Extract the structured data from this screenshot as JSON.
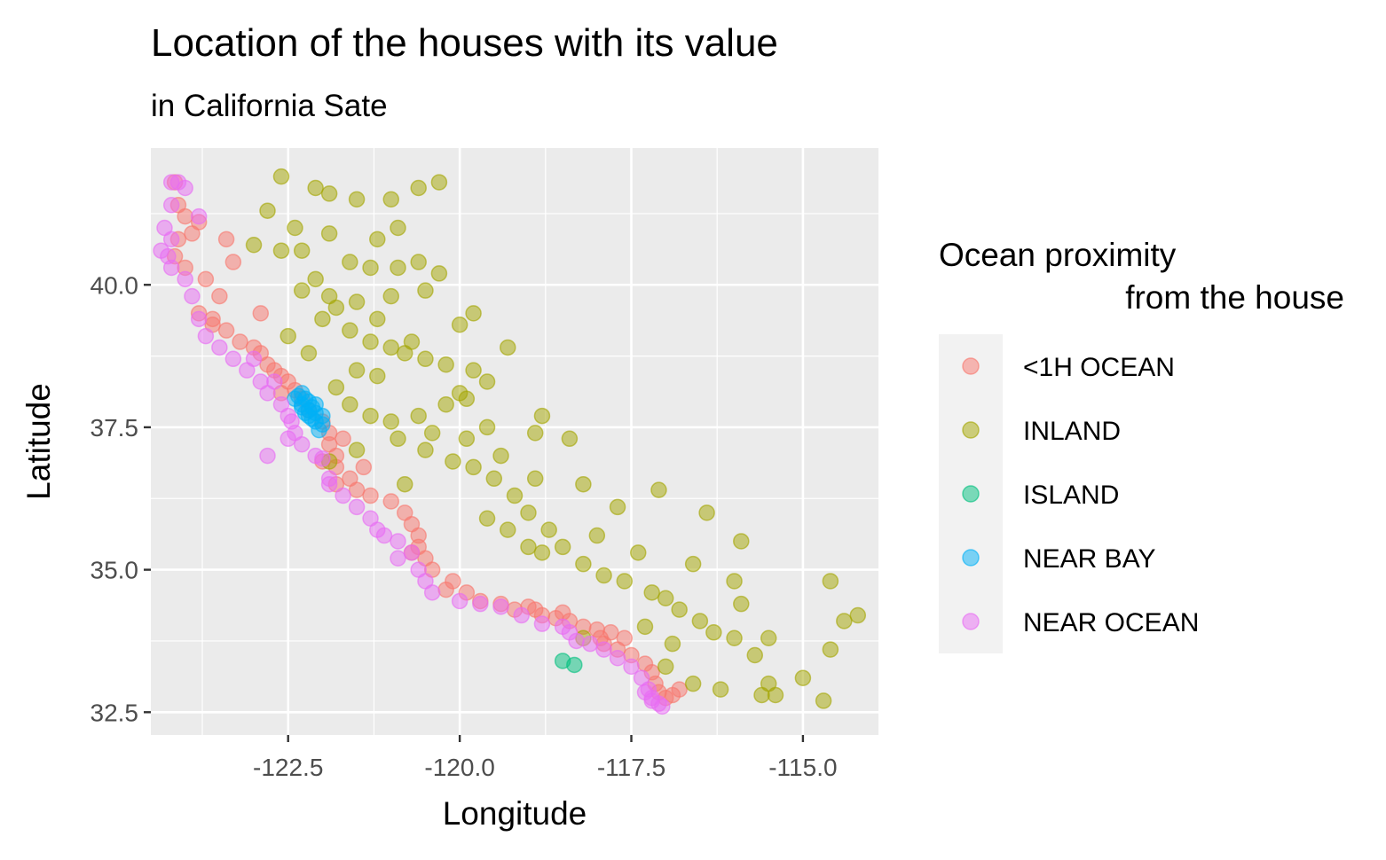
{
  "chart_data": {
    "type": "scatter",
    "title": "Location of the houses with its value",
    "subtitle": "in California Sate",
    "xlabel": "Longitude",
    "ylabel": "Latitude",
    "xlim": [
      -124.5,
      -113.9
    ],
    "ylim": [
      32.1,
      42.4
    ],
    "x_ticks": [
      -122.5,
      -120.0,
      -117.5,
      -115.0
    ],
    "x_tick_labels": [
      "-122.5",
      "-120.0",
      "-117.5",
      "-115.0"
    ],
    "y_ticks": [
      32.5,
      35.0,
      37.5,
      40.0
    ],
    "y_tick_labels": [
      "32.5",
      "35.0",
      "37.5",
      "40.0"
    ],
    "grid": true,
    "legend": {
      "title_lines": [
        "Ocean proximity",
        "from the house"
      ],
      "placement": "right"
    },
    "series": [
      {
        "name": "<1H OCEAN",
        "color": "#F8766D",
        "points": [
          [
            -124.15,
            41.8
          ],
          [
            -124.1,
            41.4
          ],
          [
            -124.0,
            41.2
          ],
          [
            -123.8,
            41.1
          ],
          [
            -123.9,
            40.9
          ],
          [
            -124.1,
            40.8
          ],
          [
            -124.15,
            40.5
          ],
          [
            -124.0,
            40.3
          ],
          [
            -123.7,
            40.1
          ],
          [
            -123.5,
            39.8
          ],
          [
            -123.8,
            39.5
          ],
          [
            -123.6,
            39.3
          ],
          [
            -123.4,
            39.2
          ],
          [
            -123.2,
            39.0
          ],
          [
            -123.0,
            38.9
          ],
          [
            -122.9,
            38.8
          ],
          [
            -122.8,
            38.6
          ],
          [
            -122.7,
            38.5
          ],
          [
            -122.6,
            38.4
          ],
          [
            -122.5,
            38.3
          ],
          [
            -122.4,
            38.15
          ],
          [
            -122.3,
            38.0
          ],
          [
            -122.2,
            37.8
          ],
          [
            -122.0,
            37.6
          ],
          [
            -121.9,
            37.4
          ],
          [
            -121.9,
            37.2
          ],
          [
            -121.8,
            37.0
          ],
          [
            -122.0,
            36.9
          ],
          [
            -121.8,
            36.8
          ],
          [
            -121.6,
            36.6
          ],
          [
            -121.8,
            36.5
          ],
          [
            -121.5,
            36.4
          ],
          [
            -121.3,
            36.3
          ],
          [
            -121.0,
            36.2
          ],
          [
            -120.8,
            36.0
          ],
          [
            -120.7,
            35.8
          ],
          [
            -120.6,
            35.6
          ],
          [
            -120.6,
            35.4
          ],
          [
            -120.5,
            35.2
          ],
          [
            -120.4,
            35.0
          ],
          [
            -120.1,
            34.8
          ],
          [
            -119.9,
            34.6
          ],
          [
            -119.7,
            34.45
          ],
          [
            -119.4,
            34.4
          ],
          [
            -119.0,
            34.35
          ],
          [
            -118.8,
            34.2
          ],
          [
            -118.6,
            34.15
          ],
          [
            -118.4,
            34.1
          ],
          [
            -118.2,
            34.0
          ],
          [
            -118.0,
            33.95
          ],
          [
            -117.8,
            33.9
          ],
          [
            -117.6,
            33.8
          ],
          [
            -117.9,
            33.7
          ],
          [
            -117.7,
            33.6
          ],
          [
            -117.5,
            33.5
          ],
          [
            -117.3,
            33.35
          ],
          [
            -117.2,
            33.2
          ],
          [
            -117.15,
            33.0
          ],
          [
            -117.1,
            32.85
          ],
          [
            -117.0,
            32.75
          ],
          [
            -116.9,
            32.8
          ],
          [
            -116.8,
            32.9
          ],
          [
            -118.9,
            34.3
          ],
          [
            -119.2,
            34.3
          ],
          [
            -120.7,
            35.3
          ],
          [
            -121.4,
            36.8
          ],
          [
            -122.9,
            39.5
          ],
          [
            -123.3,
            40.4
          ],
          [
            -123.4,
            40.8
          ],
          [
            -121.7,
            37.3
          ],
          [
            -118.5,
            34.25
          ],
          [
            -117.95,
            33.8
          ],
          [
            -120.2,
            34.65
          ],
          [
            -122.6,
            38.1
          ],
          [
            -123.6,
            39.4
          ]
        ]
      },
      {
        "name": "INLAND",
        "color": "#A3A500",
        "points": [
          [
            -122.6,
            41.9
          ],
          [
            -122.1,
            41.7
          ],
          [
            -121.9,
            41.6
          ],
          [
            -121.5,
            41.5
          ],
          [
            -121.0,
            41.5
          ],
          [
            -120.6,
            41.7
          ],
          [
            -120.3,
            41.8
          ],
          [
            -122.8,
            41.3
          ],
          [
            -122.4,
            41.0
          ],
          [
            -122.3,
            40.6
          ],
          [
            -121.9,
            40.9
          ],
          [
            -121.6,
            40.4
          ],
          [
            -121.3,
            40.3
          ],
          [
            -120.9,
            40.3
          ],
          [
            -120.6,
            40.4
          ],
          [
            -120.3,
            40.2
          ],
          [
            -120.5,
            39.9
          ],
          [
            -121.0,
            39.8
          ],
          [
            -121.5,
            39.7
          ],
          [
            -121.8,
            39.6
          ],
          [
            -122.0,
            39.4
          ],
          [
            -121.6,
            39.2
          ],
          [
            -121.3,
            39.0
          ],
          [
            -121.0,
            38.9
          ],
          [
            -120.8,
            38.8
          ],
          [
            -120.5,
            38.7
          ],
          [
            -120.2,
            38.6
          ],
          [
            -119.8,
            38.5
          ],
          [
            -119.6,
            38.3
          ],
          [
            -119.9,
            38.0
          ],
          [
            -120.2,
            37.9
          ],
          [
            -120.6,
            37.7
          ],
          [
            -121.0,
            37.6
          ],
          [
            -121.3,
            37.7
          ],
          [
            -121.6,
            37.9
          ],
          [
            -121.8,
            38.2
          ],
          [
            -121.5,
            38.5
          ],
          [
            -121.2,
            38.4
          ],
          [
            -120.9,
            37.3
          ],
          [
            -120.5,
            37.1
          ],
          [
            -120.1,
            36.9
          ],
          [
            -119.8,
            36.8
          ],
          [
            -119.5,
            36.6
          ],
          [
            -119.2,
            36.3
          ],
          [
            -119.0,
            36.0
          ],
          [
            -119.3,
            35.7
          ],
          [
            -119.0,
            35.4
          ],
          [
            -118.8,
            35.3
          ],
          [
            -118.5,
            35.4
          ],
          [
            -118.2,
            35.1
          ],
          [
            -117.9,
            34.9
          ],
          [
            -117.6,
            34.8
          ],
          [
            -117.2,
            34.6
          ],
          [
            -117.0,
            34.5
          ],
          [
            -116.8,
            34.3
          ],
          [
            -116.5,
            34.1
          ],
          [
            -116.3,
            33.9
          ],
          [
            -116.0,
            33.8
          ],
          [
            -115.7,
            33.5
          ],
          [
            -115.5,
            33.0
          ],
          [
            -115.6,
            32.8
          ],
          [
            -115.4,
            32.8
          ],
          [
            -114.6,
            33.6
          ],
          [
            -114.4,
            34.1
          ],
          [
            -114.6,
            34.8
          ],
          [
            -114.2,
            34.2
          ],
          [
            -114.7,
            32.7
          ],
          [
            -115.0,
            33.1
          ],
          [
            -117.1,
            36.4
          ],
          [
            -116.4,
            36.0
          ],
          [
            -115.9,
            35.5
          ],
          [
            -116.0,
            34.8
          ],
          [
            -117.7,
            36.1
          ],
          [
            -118.2,
            36.5
          ],
          [
            -118.9,
            37.4
          ],
          [
            -119.6,
            37.5
          ],
          [
            -118.4,
            37.3
          ],
          [
            -118.8,
            37.7
          ],
          [
            -118.2,
            33.8
          ],
          [
            -117.3,
            34.0
          ],
          [
            -116.9,
            33.7
          ],
          [
            -117.0,
            33.3
          ],
          [
            -116.6,
            33.0
          ],
          [
            -116.2,
            32.9
          ],
          [
            -121.9,
            36.9
          ],
          [
            -120.7,
            39.0
          ],
          [
            -120.0,
            39.3
          ],
          [
            -119.8,
            39.5
          ],
          [
            -120.9,
            41.0
          ],
          [
            -121.2,
            40.8
          ],
          [
            -122.6,
            40.6
          ],
          [
            -123.0,
            40.7
          ],
          [
            -122.3,
            39.9
          ],
          [
            -121.9,
            39.8
          ],
          [
            -119.9,
            37.3
          ],
          [
            -119.4,
            37.0
          ],
          [
            -118.7,
            35.7
          ],
          [
            -118.0,
            35.6
          ],
          [
            -117.4,
            35.3
          ],
          [
            -116.6,
            35.1
          ],
          [
            -115.9,
            34.4
          ],
          [
            -115.5,
            33.8
          ],
          [
            -120.4,
            37.4
          ],
          [
            -120.8,
            36.5
          ],
          [
            -119.6,
            35.9
          ],
          [
            -118.9,
            36.6
          ],
          [
            -121.5,
            37.1
          ],
          [
            -122.2,
            38.8
          ],
          [
            -122.5,
            39.1
          ],
          [
            -120.0,
            38.1
          ],
          [
            -119.3,
            38.9
          ],
          [
            -122.1,
            40.1
          ],
          [
            -121.2,
            39.4
          ]
        ]
      },
      {
        "name": "ISLAND",
        "color": "#00BF7D",
        "points": [
          [
            -118.5,
            33.4
          ],
          [
            -118.33,
            33.33
          ]
        ]
      },
      {
        "name": "NEAR BAY",
        "color": "#00B0F6",
        "points": [
          [
            -122.3,
            38.1
          ],
          [
            -122.25,
            38.0
          ],
          [
            -122.2,
            37.95
          ],
          [
            -122.3,
            37.9
          ],
          [
            -122.15,
            37.85
          ],
          [
            -122.2,
            37.8
          ],
          [
            -122.1,
            37.75
          ],
          [
            -122.2,
            37.7
          ],
          [
            -122.1,
            37.6
          ],
          [
            -122.0,
            37.55
          ],
          [
            -122.4,
            38.0
          ],
          [
            -122.35,
            38.05
          ],
          [
            -122.1,
            37.9
          ],
          [
            -122.25,
            37.75
          ],
          [
            -122.0,
            37.7
          ],
          [
            -122.3,
            37.85
          ],
          [
            -122.15,
            37.65
          ],
          [
            -122.05,
            37.45
          ]
        ]
      },
      {
        "name": "NEAR OCEAN",
        "color": "#E76BF3",
        "points": [
          [
            -124.2,
            41.8
          ],
          [
            -124.1,
            41.8
          ],
          [
            -124.2,
            41.4
          ],
          [
            -124.3,
            41.0
          ],
          [
            -124.2,
            40.8
          ],
          [
            -124.35,
            40.6
          ],
          [
            -124.25,
            40.5
          ],
          [
            -124.2,
            40.3
          ],
          [
            -124.0,
            40.1
          ],
          [
            -123.9,
            39.8
          ],
          [
            -123.8,
            39.4
          ],
          [
            -123.7,
            39.1
          ],
          [
            -123.5,
            38.9
          ],
          [
            -123.3,
            38.7
          ],
          [
            -123.1,
            38.5
          ],
          [
            -122.9,
            38.3
          ],
          [
            -122.8,
            38.1
          ],
          [
            -122.6,
            37.9
          ],
          [
            -122.5,
            37.7
          ],
          [
            -122.45,
            37.6
          ],
          [
            -122.4,
            37.4
          ],
          [
            -122.3,
            37.2
          ],
          [
            -122.1,
            37.0
          ],
          [
            -122.0,
            36.95
          ],
          [
            -121.9,
            36.6
          ],
          [
            -121.9,
            36.5
          ],
          [
            -121.7,
            36.3
          ],
          [
            -121.5,
            36.1
          ],
          [
            -121.3,
            35.9
          ],
          [
            -121.1,
            35.6
          ],
          [
            -120.9,
            35.5
          ],
          [
            -120.7,
            35.3
          ],
          [
            -120.6,
            35.0
          ],
          [
            -120.5,
            34.8
          ],
          [
            -120.4,
            34.6
          ],
          [
            -120.0,
            34.45
          ],
          [
            -119.7,
            34.4
          ],
          [
            -119.4,
            34.35
          ],
          [
            -119.1,
            34.2
          ],
          [
            -118.8,
            34.05
          ],
          [
            -118.5,
            34.0
          ],
          [
            -118.4,
            33.9
          ],
          [
            -118.3,
            33.75
          ],
          [
            -118.1,
            33.7
          ],
          [
            -117.9,
            33.6
          ],
          [
            -117.7,
            33.45
          ],
          [
            -117.5,
            33.3
          ],
          [
            -117.35,
            33.1
          ],
          [
            -117.25,
            32.9
          ],
          [
            -117.2,
            32.75
          ],
          [
            -117.1,
            32.65
          ],
          [
            -117.05,
            32.6
          ],
          [
            -117.2,
            32.7
          ],
          [
            -117.3,
            32.85
          ],
          [
            -121.2,
            35.7
          ],
          [
            -120.9,
            35.2
          ],
          [
            -122.7,
            38.3
          ],
          [
            -123.0,
            38.7
          ],
          [
            -122.8,
            37.0
          ],
          [
            -122.5,
            37.3
          ],
          [
            -124.0,
            41.7
          ],
          [
            -123.8,
            41.2
          ]
        ]
      }
    ]
  }
}
